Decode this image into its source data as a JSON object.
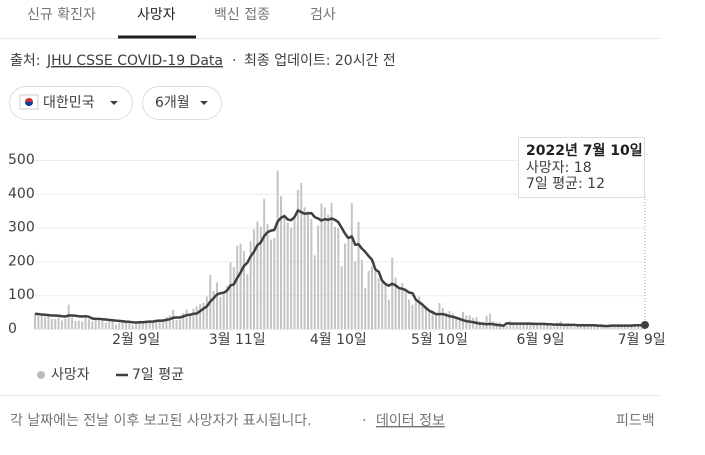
{
  "tabs": [
    "신규 확진자",
    "사망자",
    "백신 접종",
    "검사"
  ],
  "source": {
    "label": "출처:",
    "link": "JHU CSSE COVID-19 Data",
    "updated": "최종 업데이트: 20시간 전"
  },
  "filters": [
    "대한민국",
    "6개월"
  ],
  "chart_data": {
    "type": "bar",
    "categories": [
      null,
      null,
      null,
      null,
      null,
      null,
      null,
      null,
      null,
      null,
      null,
      null,
      null,
      null,
      null,
      null,
      null,
      null,
      null,
      null,
      null,
      null,
      null,
      null,
      null,
      null,
      null,
      null,
      null,
      null,
      "2월 9일",
      null,
      null,
      null,
      null,
      null,
      null,
      null,
      null,
      null,
      null,
      null,
      null,
      null,
      null,
      null,
      null,
      null,
      null,
      null,
      null,
      null,
      null,
      null,
      null,
      null,
      null,
      null,
      null,
      null,
      "3월 11일",
      null,
      null,
      null,
      null,
      null,
      null,
      null,
      null,
      null,
      null,
      null,
      null,
      null,
      null,
      null,
      null,
      null,
      null,
      null,
      null,
      null,
      null,
      null,
      null,
      null,
      null,
      null,
      null,
      null,
      "4월 10일",
      null,
      null,
      null,
      null,
      null,
      null,
      null,
      null,
      null,
      null,
      null,
      null,
      null,
      null,
      null,
      null,
      null,
      null,
      null,
      null,
      null,
      null,
      null,
      null,
      null,
      null,
      null,
      null,
      null,
      "5월 10일",
      null,
      null,
      null,
      null,
      null,
      null,
      null,
      null,
      null,
      null,
      null,
      null,
      null,
      null,
      null,
      null,
      null,
      null,
      null,
      null,
      null,
      null,
      null,
      null,
      null,
      null,
      null,
      null,
      null,
      "6월 9일",
      null,
      null,
      null,
      null,
      null,
      null,
      null,
      null,
      null,
      null,
      null,
      null,
      null,
      null,
      null,
      null,
      null,
      null,
      null,
      null,
      null,
      null,
      null,
      null,
      null,
      null,
      null,
      null,
      null,
      "7월 9일",
      null
    ],
    "series": [
      {
        "name": "사망자",
        "type": "bar",
        "color": "#c4c4c4",
        "values": [
          45,
          38,
          40,
          36,
          39,
          30,
          29,
          33,
          25,
          30,
          72,
          34,
          24,
          25,
          22,
          33,
          29,
          23,
          28,
          25,
          25,
          19,
          23,
          24,
          13,
          18,
          20,
          20,
          16,
          13,
          14,
          22,
          21,
          25,
          25,
          18,
          28,
          22,
          25,
          35,
          41,
          56,
          26,
          28,
          47,
          58,
          43,
          60,
          67,
          74,
          78,
          96,
          160,
          112,
          138,
          94,
          101,
          126,
          197,
          183,
          246,
          253,
          231,
          162,
          260,
          295,
          318,
          303,
          385,
          310,
          264,
          269,
          469,
          393,
          339,
          315,
          300,
          330,
          412,
          432,
          360,
          348,
          325,
          218,
          306,
          371,
          360,
          338,
          373,
          302,
          298,
          186,
          253,
          264,
          372,
          200,
          317,
          205,
          122,
          172,
          185,
          172,
          150,
          137,
          133,
          87,
          211,
          152,
          116,
          136,
          112,
          87,
          72,
          81,
          96,
          69,
          68,
          57,
          55,
          44,
          77,
          62,
          48,
          53,
          46,
          35,
          26,
          51,
          40,
          40,
          33,
          35,
          22,
          17,
          39,
          46,
          23,
          19,
          19,
          12,
          9,
          24,
          15,
          19,
          18,
          16,
          15,
          19,
          14,
          16,
          18,
          18,
          12,
          9,
          7,
          19,
          23,
          9,
          17,
          8,
          6,
          8,
          14,
          13,
          11,
          8,
          13,
          9,
          8,
          6,
          8,
          12,
          9,
          15,
          9,
          11,
          7,
          12,
          13,
          11,
          12,
          18
        ]
      },
      {
        "name": "7일 평균",
        "type": "line",
        "color": "#3c4043",
        "values": [
          45,
          44,
          43,
          42,
          41,
          40,
          40,
          39,
          38,
          37,
          40,
          40,
          39,
          38,
          37,
          38,
          36,
          31,
          30,
          30,
          29,
          28,
          27,
          26,
          25,
          24,
          23,
          22,
          21,
          20,
          19,
          20,
          20,
          21,
          22,
          22,
          24,
          25,
          25,
          27,
          29,
          33,
          34,
          34,
          37,
          41,
          42,
          45,
          46,
          53,
          60,
          67,
          81,
          91,
          102,
          106,
          107,
          114,
          129,
          132,
          151,
          167,
          187,
          196,
          215,
          229,
          248,
          256,
          275,
          286,
          291,
          293,
          318,
          329,
          334,
          324,
          322,
          331,
          351,
          346,
          341,
          342,
          343,
          331,
          327,
          321,
          325,
          323,
          327,
          323,
          316,
          299,
          282,
          269,
          274,
          249,
          251,
          238,
          228,
          216,
          205,
          176,
          169,
          143,
          133,
          128,
          134,
          129,
          121,
          119,
          115,
          108,
          106,
          87,
          79,
          72,
          62,
          54,
          49,
          44,
          44,
          44,
          41,
          38,
          36,
          33,
          30,
          26,
          23,
          22,
          20,
          18,
          16,
          16,
          14,
          15,
          14,
          12,
          11,
          10,
          17,
          16,
          16,
          16,
          16,
          16,
          16,
          16,
          15,
          15,
          15,
          15,
          14,
          14,
          13,
          13,
          13,
          12,
          12,
          12,
          12,
          11,
          11,
          11,
          11,
          11,
          11,
          10,
          10,
          9,
          9,
          10,
          10,
          10,
          10,
          10,
          10,
          10,
          11,
          11,
          11,
          12
        ]
      }
    ],
    "ylim": [
      0,
      500
    ],
    "yticks": [
      0,
      100,
      200,
      300,
      400,
      500
    ],
    "grid": true,
    "tooltip": {
      "title": "2022년 7월 10일",
      "lines": [
        "사망자: 18",
        "7일 평균: 12"
      ]
    }
  },
  "footer": {
    "note": "각 날짜에는 전날 이후 보고된 사망자가 표시됩니다.",
    "link": "데이터 정보",
    "feedback": "피드백"
  }
}
